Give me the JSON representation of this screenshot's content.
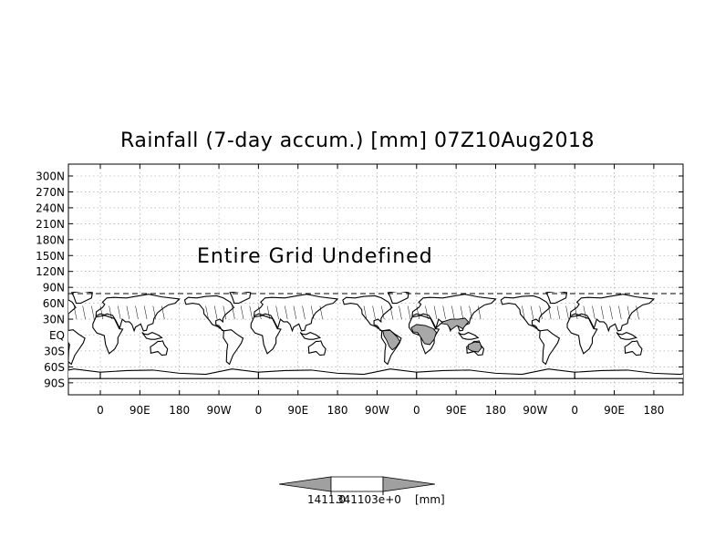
{
  "title": "Rainfall (7-day accum.) [mm] 07Z10Aug2018",
  "annotation": "Entire Grid Undefined",
  "y_ticks": [
    "300N",
    "270N",
    "240N",
    "210N",
    "180N",
    "150N",
    "120N",
    "90N",
    "60N",
    "30N",
    "EQ",
    "30S",
    "60S",
    "90S"
  ],
  "x_ticks": [
    "0",
    "90E",
    "180",
    "90W",
    "0",
    "90E",
    "180",
    "90W",
    "0",
    "90E",
    "180",
    "90W",
    "0",
    "90E",
    "180"
  ],
  "colorbar": {
    "labels": [
      "1411.0",
      "341103e+0",
      "[mm]"
    ],
    "colors": {
      "low": "#a0a0a0",
      "mid": "#ffffff",
      "high": "#a0a0a0"
    }
  },
  "colors": {
    "land_fill": "#ffffff",
    "highlight_fill": "#a8a8a8",
    "grid": "#999999"
  }
}
